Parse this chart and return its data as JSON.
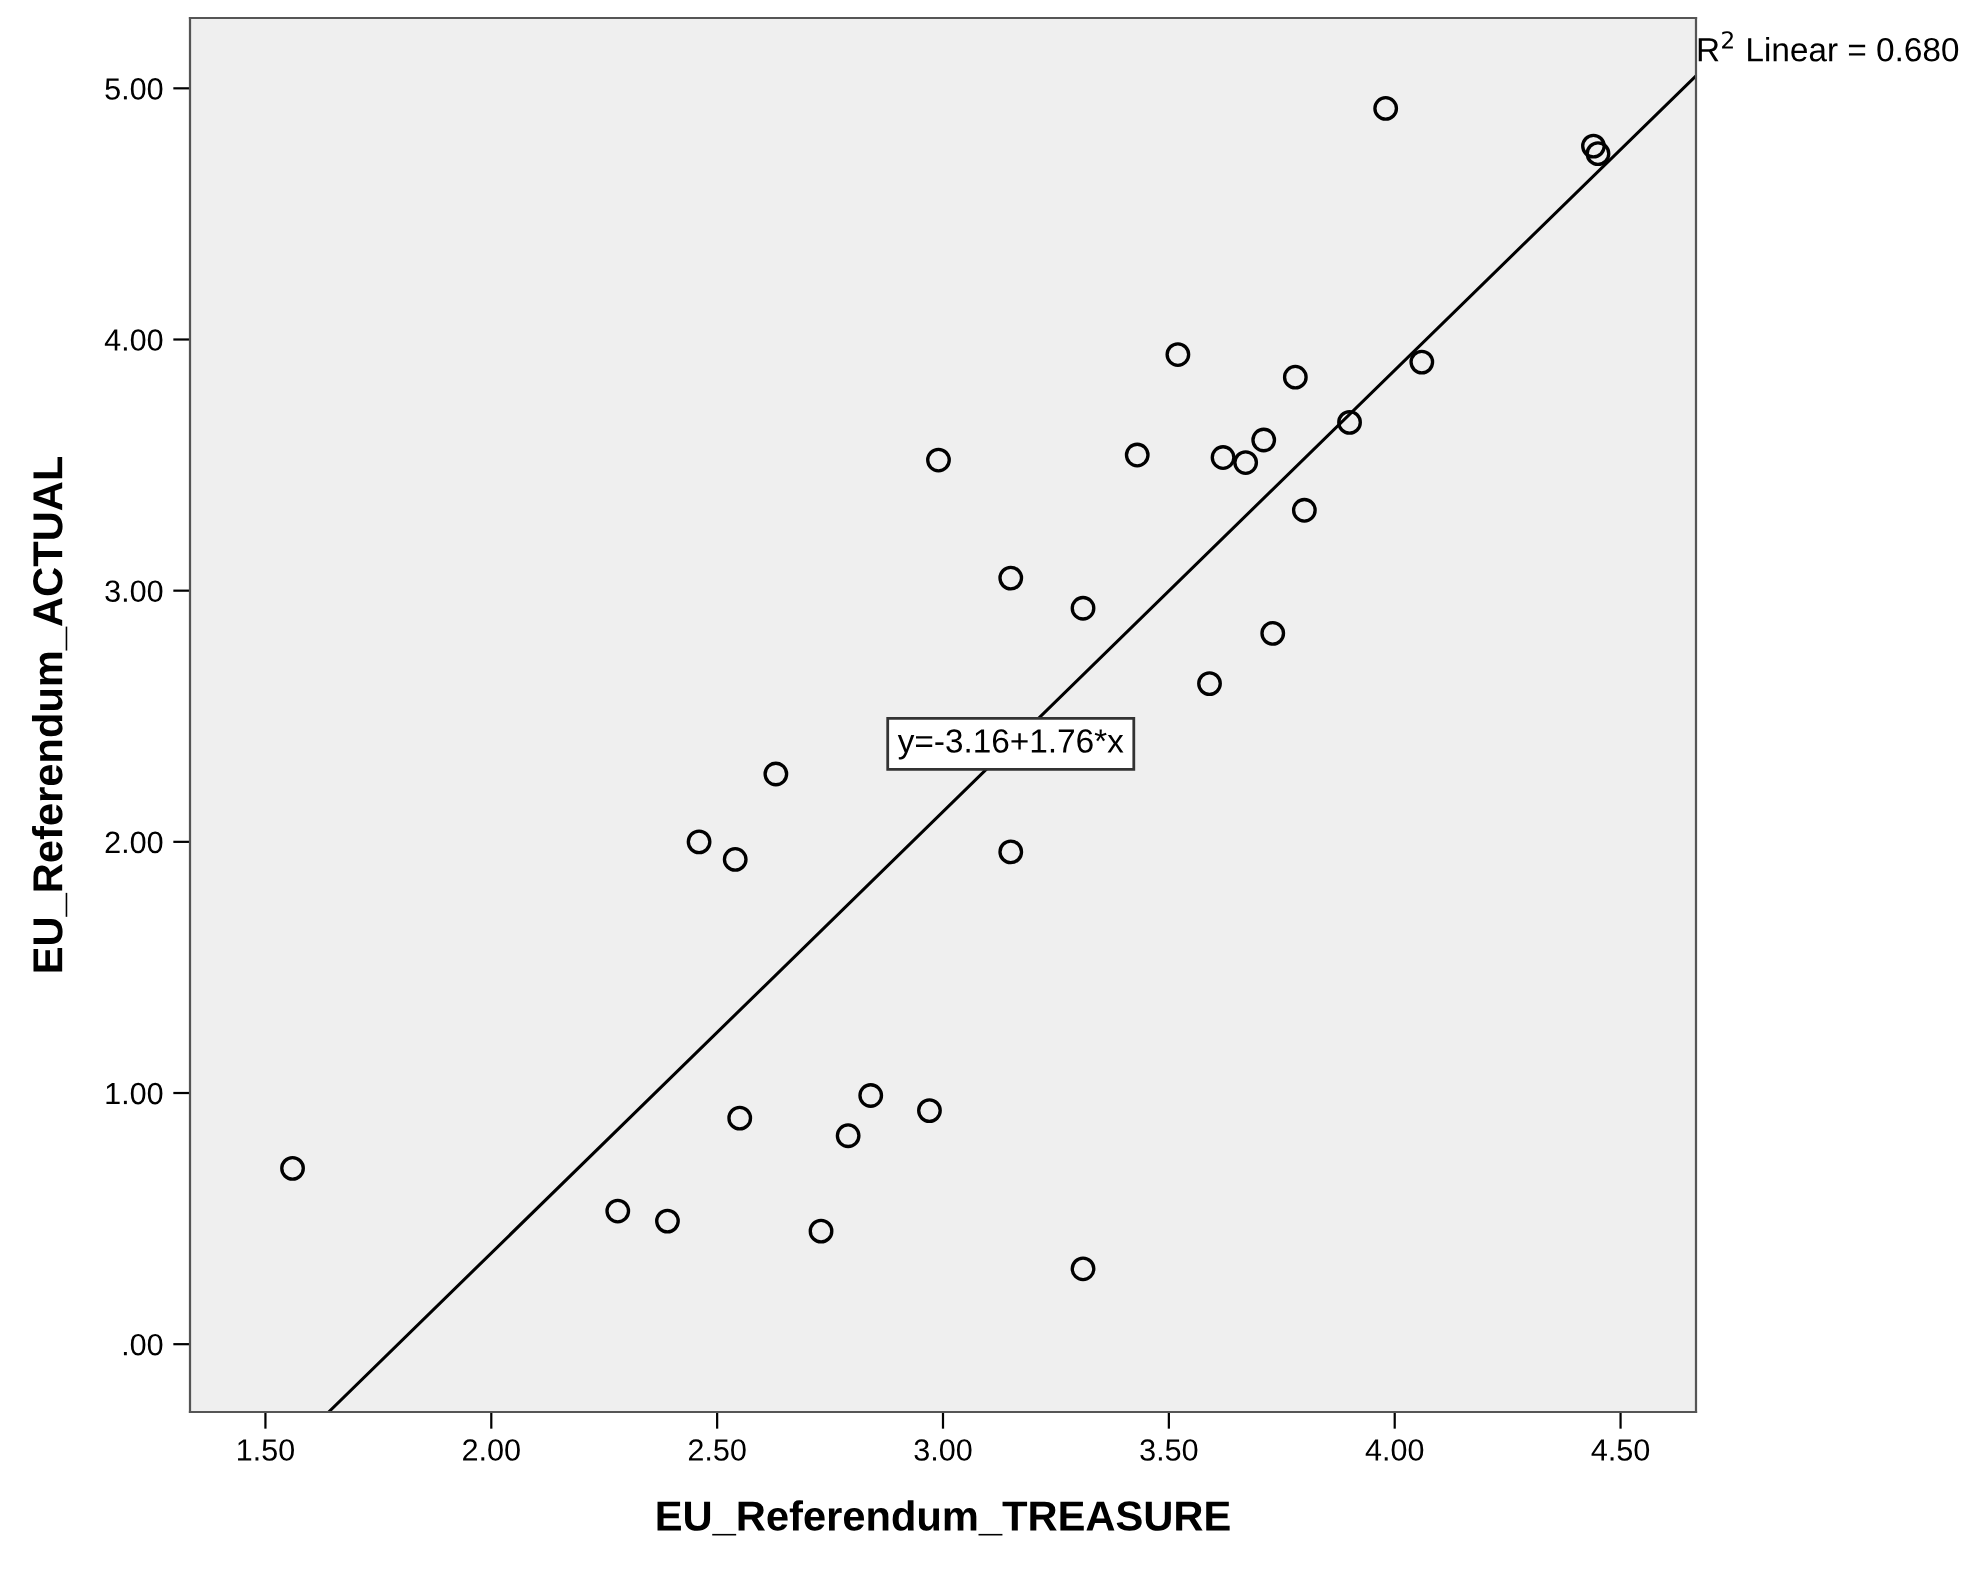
{
  "chart_data": {
    "type": "scatter",
    "xlabel": "EU_Referendum_TREASURE",
    "ylabel": "EU_Referendum_ACTUAL",
    "xlim": [
      1.333,
      4.667
    ],
    "ylim": [
      -0.27,
      5.28
    ],
    "xticks": [
      {
        "value": 1.5,
        "label": "1.50"
      },
      {
        "value": 2.0,
        "label": "2.00"
      },
      {
        "value": 2.5,
        "label": "2.50"
      },
      {
        "value": 3.0,
        "label": "3.00"
      },
      {
        "value": 3.5,
        "label": "3.50"
      },
      {
        "value": 4.0,
        "label": "4.00"
      },
      {
        "value": 4.5,
        "label": "4.50"
      }
    ],
    "yticks": [
      {
        "value": 0,
        "label": ".00"
      },
      {
        "value": 1,
        "label": "1.00"
      },
      {
        "value": 2,
        "label": "2.00"
      },
      {
        "value": 3,
        "label": "3.00"
      },
      {
        "value": 4,
        "label": "4.00"
      },
      {
        "value": 5,
        "label": "5.00"
      }
    ],
    "grid": false,
    "series": [
      {
        "marker": "circle",
        "color": "#000000",
        "x": [
          2.99,
          3.15,
          2.63,
          3.98,
          4.44,
          4.45,
          3.52,
          4.06,
          3.78,
          3.9,
          3.43,
          3.62,
          3.67,
          3.71,
          3.8,
          3.31,
          3.73,
          3.59,
          2.46,
          2.54,
          3.15,
          1.56,
          2.55,
          2.84,
          2.97,
          2.79,
          2.28,
          2.39,
          2.73,
          3.31
        ],
        "values": [
          3.52,
          3.05,
          2.27,
          4.92,
          4.77,
          4.74,
          3.94,
          3.91,
          3.85,
          3.67,
          3.54,
          3.53,
          3.51,
          3.6,
          3.32,
          2.93,
          2.83,
          2.63,
          2.0,
          1.93,
          1.96,
          0.7,
          0.9,
          0.99,
          0.93,
          0.83,
          0.53,
          0.49,
          0.45,
          0.3
        ]
      },
      {
        "type": "line",
        "marker": "none",
        "color": "#000000",
        "x": [
          1.64,
          4.667
        ],
        "values": [
          -0.27,
          5.05
        ]
      }
    ],
    "annotations": [
      {
        "text": "y=-3.16+1.76*x",
        "x": 3.15,
        "y": 2.39
      },
      "R$^{2}$ Linear = 0.680"
    ]
  }
}
